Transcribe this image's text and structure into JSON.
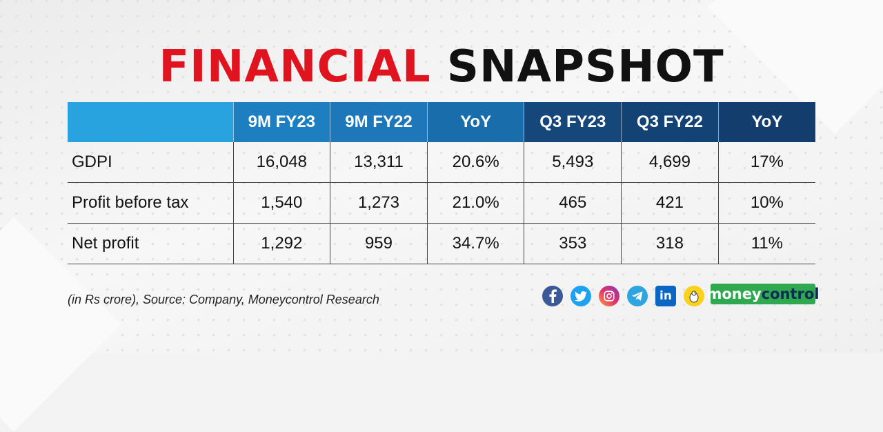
{
  "title": {
    "part1": "FINANCIAL",
    "part2": "SNAPSHOT"
  },
  "table": {
    "headers": [
      "",
      "9M FY23",
      "9M FY22",
      "YoY",
      "Q3 FY23",
      "Q3 FY22",
      "YoY"
    ],
    "rows": [
      [
        "GDPI",
        "16,048",
        "13,311",
        "20.6%",
        "5,493",
        "4,699",
        "17%"
      ],
      [
        "Profit before tax",
        "1,540",
        "1,273",
        "21.0%",
        "465",
        "421",
        "10%"
      ],
      [
        "Net profit",
        "1,292",
        "959",
        "34.7%",
        "353",
        "318",
        "11%"
      ]
    ]
  },
  "source": "(in Rs crore), Source: Company, Moneycontrol Research",
  "social_icons": [
    "facebook-icon",
    "twitter-icon",
    "instagram-icon",
    "telegram-icon",
    "linkedin-icon",
    "koo-icon"
  ],
  "logo": {
    "part1": "money",
    "part2": "control"
  },
  "colors": {
    "title_red": "#e0141e",
    "header_light_blue": "#29a3df",
    "header_mid_blue": "#1e7fc0",
    "header_dark_blue": "#15477b",
    "logo_green": "#2fa84f"
  }
}
